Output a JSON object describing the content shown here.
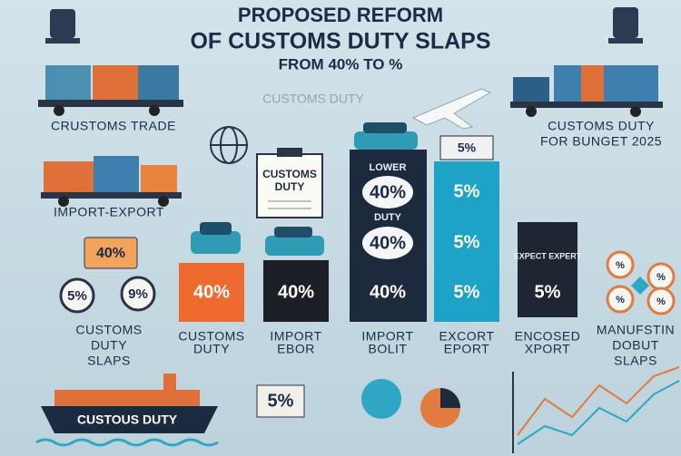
{
  "header": {
    "title_line1": "PROPOSED REFORM",
    "title_line2": "OF CUSTOMS DUTY SLAPS",
    "subtitle": "FROM 40% TO %"
  },
  "top_left": {
    "label": "CRUSTOMS TRADE"
  },
  "top_center": {
    "label": "CUSTOMS DUTY"
  },
  "top_right": {
    "line1": "CUSTOMS DUTY",
    "line2": "FOR BUNGET 2025"
  },
  "left": {
    "label": "IMPORT-EXPORT",
    "box": "40%",
    "badges": [
      "5%",
      "9%"
    ],
    "caption": [
      "CUSTOMS",
      "DUTY",
      "SLAPS"
    ]
  },
  "clipboard": {
    "line1": "CUSTOMS",
    "line2": "DUTY"
  },
  "columns": [
    {
      "values": [
        "40%"
      ],
      "caption": [
        "CUSTOMS",
        "DUTY"
      ]
    },
    {
      "values": [
        "40%"
      ],
      "caption": [
        "IMPORT",
        "EBOR"
      ]
    },
    {
      "header": "LOWER",
      "values": [
        "40%",
        "40%",
        "40%"
      ],
      "note": "DUTY",
      "caption": [
        "IMPORT",
        "BOLIT"
      ]
    },
    {
      "header": "5%",
      "values": [
        "5%",
        "5%",
        "5%"
      ],
      "caption": [
        "EXCORT",
        "EPORT"
      ]
    },
    {
      "header": "EXPECT EXPERT",
      "values": [
        "5%"
      ],
      "caption": [
        "ENCOSED",
        "XPORT"
      ]
    }
  ],
  "right": {
    "badges": [
      "%",
      "%",
      "%",
      "%"
    ],
    "caption": [
      "MANUFSTIN",
      "DOBUT",
      "SLAPS"
    ]
  },
  "bottom": {
    "ship_label": "CUSTOUS DUTY",
    "card": "5%"
  }
}
